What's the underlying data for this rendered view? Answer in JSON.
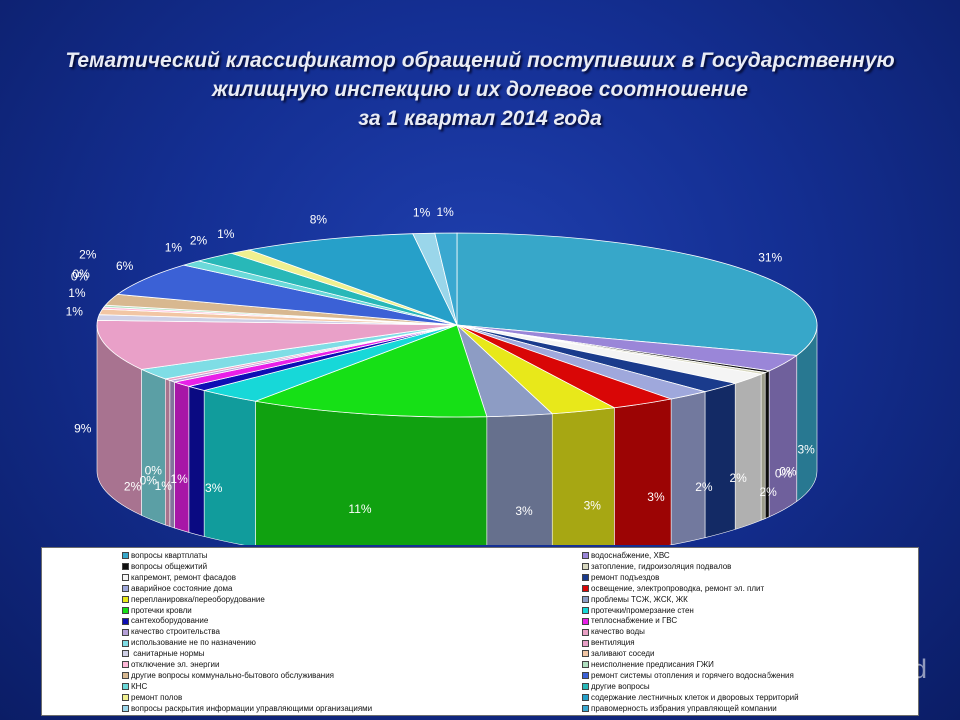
{
  "title": {
    "line1": "Тематический классификатор обращений поступивших в Государственную",
    "line2": "жилищную инспекцию и их долевое соотношение",
    "line3": "за 1 квартал 2014 года"
  },
  "chart_data": {
    "type": "pie",
    "title": "Тематический классификатор обращений поступивших в Государственную жилищную инспекцию и их долевое соотношение за 1 квартал 2014 года",
    "legend_position": "bottom",
    "series": [
      {
        "values": [
          31,
          3,
          0,
          0,
          2,
          2,
          2,
          3,
          3,
          3,
          11,
          3,
          1,
          1,
          0,
          0,
          2,
          9,
          1,
          1,
          0,
          0,
          2,
          6,
          1,
          2,
          1,
          8,
          1,
          1
        ],
        "labels": [
          "31%",
          "3%",
          "0%",
          "0%",
          "2%",
          "2%",
          "2%",
          "3%",
          "3%",
          "3%",
          "11%",
          "3%",
          "1%",
          "1%",
          "0%",
          "0%",
          "2%",
          "9%",
          "1%",
          "1%",
          "0%",
          "0%",
          "2%",
          "6%",
          "1%",
          "2%",
          "1%",
          "8%",
          "1%",
          "1%"
        ]
      }
    ],
    "colors": [
      "#37a7c9",
      "#9a86d8",
      "#101010",
      "#d8d8c0",
      "#f4f4f4",
      "#1a3b8c",
      "#9fa8dc",
      "#d90606",
      "#e8e81a",
      "#8d9cc4",
      "#16e016",
      "#17d8d8",
      "#0e0eb4",
      "#e820e8",
      "#b6a0d8",
      "#e9a0c4",
      "#7fdde5",
      "#e9a0c8",
      "#cfcfe6",
      "#f2c6a4",
      "#ffb8d8",
      "#b0e0c0",
      "#d8b890",
      "#3b61d6",
      "#6bd9d9",
      "#28b8b8",
      "#f0f090",
      "#26a0c9",
      "#9ad6ea",
      "#3aa8d0"
    ]
  },
  "legend": {
    "items": [
      {
        "label": "вопросы квартплаты",
        "color": "#37a7c9"
      },
      {
        "label": "водоснабжение, ХВС",
        "color": "#9a86d8"
      },
      {
        "label": "вопросы общежитий",
        "color": "#101010"
      },
      {
        "label": "затопление, гидроизоляция подвалов",
        "color": "#d8d8c0"
      },
      {
        "label": "капремонт, ремонт фасадов",
        "color": "#f4f4f4"
      },
      {
        "label": "ремонт подъездов",
        "color": "#1a3b8c"
      },
      {
        "label": "аварийное состояние дома",
        "color": "#9fa8dc"
      },
      {
        "label": "освещение, электропроводка, ремонт эл. плит",
        "color": "#d90606"
      },
      {
        "label": "перепланировка/переоборудование",
        "color": "#e8e81a"
      },
      {
        "label": "проблемы ТСЖ, ЖСК, ЖК",
        "color": "#8d9cc4"
      },
      {
        "label": "протечки кровли",
        "color": "#16e016"
      },
      {
        "label": "протечки/промерзание стен",
        "color": "#17d8d8"
      },
      {
        "label": "сантехоборудование",
        "color": "#0e0eb4"
      },
      {
        "label": "теплоснабжение и ГВС",
        "color": "#e820e8"
      },
      {
        "label": "качество строительства",
        "color": "#b6a0d8"
      },
      {
        "label": "качество воды",
        "color": "#e9a0c4"
      },
      {
        "label": "использование не по назначению",
        "color": "#7fdde5"
      },
      {
        "label": "вентиляция",
        "color": "#e9a0c8"
      },
      {
        "label": " санитарные нормы",
        "color": "#cfcfe6"
      },
      {
        "label": "заливают соседи",
        "color": "#f2c6a4"
      },
      {
        "label": "отключение эл. энергии",
        "color": "#ffb8d8"
      },
      {
        "label": "неисполнение предписания ГЖИ",
        "color": "#b0e0c0"
      },
      {
        "label": "другие вопросы коммунально-бытового обслуживания",
        "color": "#d8b890"
      },
      {
        "label": "ремонт системы отопления и горячего водоснабжения",
        "color": "#3b61d6"
      },
      {
        "label": "КНС",
        "color": "#6bd9d9"
      },
      {
        "label": "другие вопросы",
        "color": "#28b8b8"
      },
      {
        "label": "ремонт полов",
        "color": "#f0f090"
      },
      {
        "label": "содержание лестничных клеток и дворовых территорий",
        "color": "#26a0c9"
      },
      {
        "label": "вопросы раскрытия информации управляющими организациями",
        "color": "#9ad6ea"
      },
      {
        "label": "правомерность избрания управляющей компании",
        "color": "#3aa8d0"
      }
    ]
  },
  "watermark": {
    "text": "MyShared"
  }
}
